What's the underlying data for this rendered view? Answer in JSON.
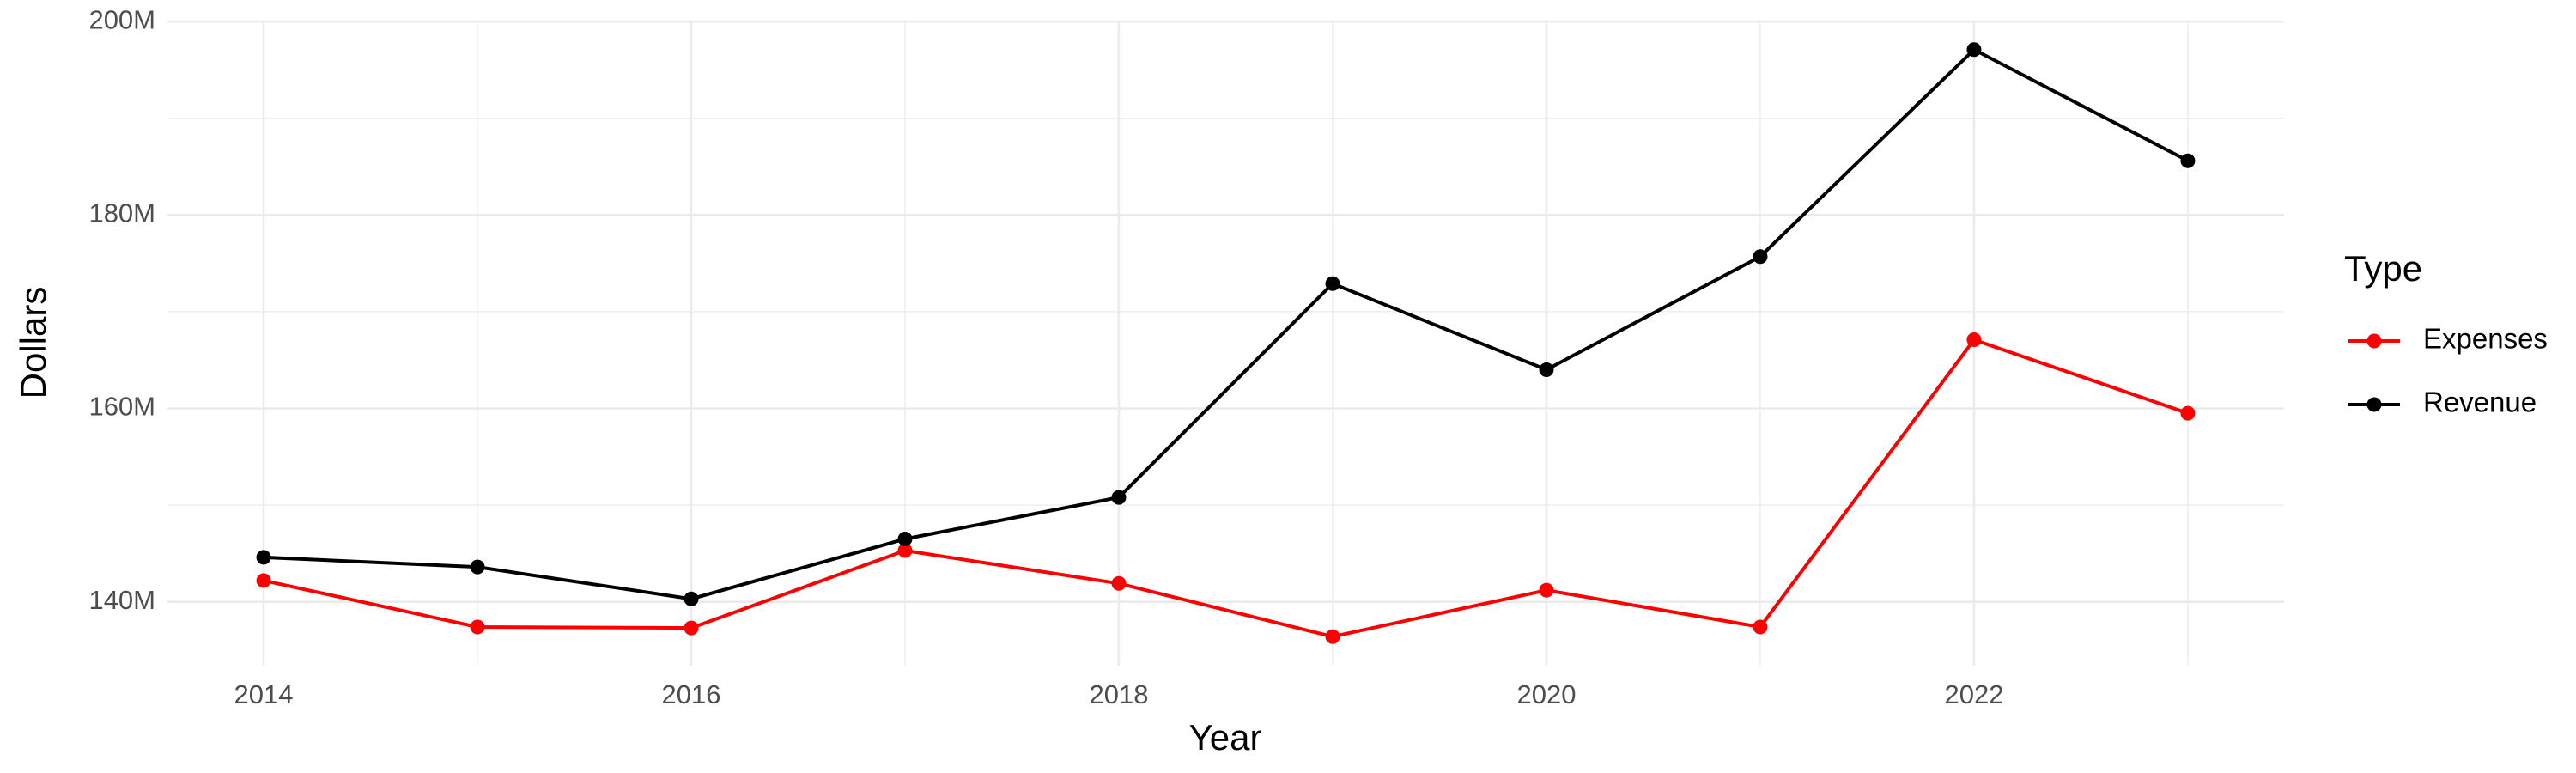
{
  "chart_data": {
    "type": "line",
    "x_label": "Year",
    "y_label": "Dollars",
    "legend_title": "Type",
    "x": [
      2014,
      2015,
      2016,
      2017,
      2018,
      2019,
      2020,
      2021,
      2022,
      2023
    ],
    "series": [
      {
        "name": "Expenses",
        "color": "#ff0000",
        "values": [
          142200000,
          137400000,
          137300000,
          145300000,
          141900000,
          136400000,
          141200000,
          137400000,
          167100000,
          159500000
        ]
      },
      {
        "name": "Revenue",
        "color": "#000000",
        "values": [
          144600000,
          143600000,
          140300000,
          146500000,
          150800000,
          172900000,
          164000000,
          175700000,
          197100000,
          185600000
        ]
      }
    ],
    "xlim": [
      2013.55,
      2023.45
    ],
    "xticks": [
      2014,
      2016,
      2018,
      2020,
      2022
    ],
    "x_minor_ticks": [
      2015,
      2017,
      2019,
      2021,
      2023
    ],
    "ylim": [
      133400000,
      200100000
    ],
    "yticks": [
      {
        "value": 140000000,
        "label": "140M"
      },
      {
        "value": 160000000,
        "label": "160M"
      },
      {
        "value": 180000000,
        "label": "180M"
      },
      {
        "value": 200000000,
        "label": "200M"
      }
    ],
    "y_minor_ticks": [
      150000000,
      170000000,
      190000000
    ],
    "grid": true,
    "legend_position": "right"
  }
}
